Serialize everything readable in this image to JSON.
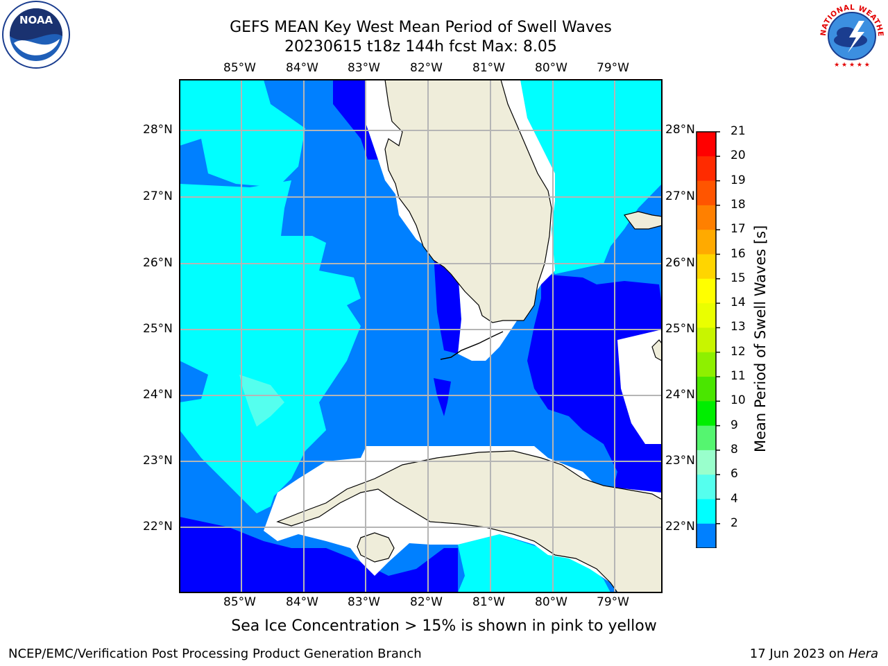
{
  "header": {
    "title_line1": "GEFS MEAN Key West Mean Period of Swell Waves",
    "title_line2": "20230615 t18z 144h fcst   Max: 8.05"
  },
  "logos": {
    "left": {
      "text": "NOAA",
      "icon": "noaa-logo-icon"
    },
    "right": {
      "text": "NATIONAL WEATHER SERVICE",
      "icon": "nws-logo-icon"
    }
  },
  "map": {
    "lon_ticks": [
      "85°W",
      "84°W",
      "83°W",
      "82°W",
      "81°W",
      "80°W",
      "79°W"
    ],
    "lat_ticks": [
      "28°N",
      "27°N",
      "26°N",
      "25°N",
      "24°N",
      "23°N",
      "22°N"
    ],
    "land_color": "#efedda",
    "grid_color": "#b5b5b5"
  },
  "colorbar": {
    "label": "Mean Period of Swell Waves [s]",
    "ticks": [
      "21",
      "20",
      "19",
      "18",
      "17",
      "16",
      "15",
      "14",
      "13",
      "12",
      "11",
      "10",
      "9",
      "8",
      "6",
      "4",
      "2"
    ],
    "colors": [
      "#ff0000",
      "#ff2b00",
      "#ff5500",
      "#ff8000",
      "#ffaa00",
      "#ffd500",
      "#ffff00",
      "#eaff00",
      "#c8f500",
      "#8ef000",
      "#4ae600",
      "#00ee00",
      "#55f570",
      "#99ffcc",
      "#55ffee",
      "#00ffff",
      "#0080ff"
    ],
    "under_color": "#0000ff"
  },
  "subtitle": "Sea Ice Concentration > 15% is shown in pink to yellow",
  "footer": {
    "left": "NCEP/EMC/Verification Post Processing Product Generation Branch",
    "right_prefix": "17 Jun 2023 on ",
    "right_host": "Hera"
  }
}
